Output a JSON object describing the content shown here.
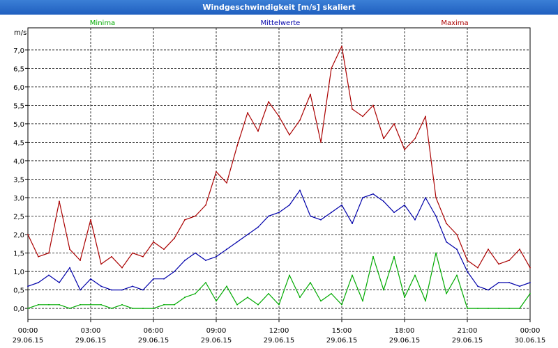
{
  "window": {
    "title": "Windgeschwindigkeit [m/s] skaliert"
  },
  "chart_data": {
    "type": "line",
    "title": "Windgeschwindigkeit [m/s] skaliert",
    "ylabel": "m/s",
    "ylim": [
      -0.3,
      7.6
    ],
    "xlim": [
      0,
      24
    ],
    "grid": true,
    "legend_position": "top",
    "y_ticks": [
      "0,0",
      "0,5",
      "1,0",
      "1,5",
      "2,0",
      "2,5",
      "3,0",
      "3,5",
      "4,0",
      "4,5",
      "5,0",
      "5,5",
      "6,0",
      "6,5",
      "7,0"
    ],
    "y_tick_values": [
      0,
      0.5,
      1,
      1.5,
      2,
      2.5,
      3,
      3.5,
      4,
      4.5,
      5,
      5.5,
      6,
      6.5,
      7
    ],
    "x_ticks": [
      {
        "time": "00:00",
        "date": "29.06.15",
        "hour": 0
      },
      {
        "time": "03:00",
        "date": "29.06.15",
        "hour": 3
      },
      {
        "time": "06:00",
        "date": "29.06.15",
        "hour": 6
      },
      {
        "time": "09:00",
        "date": "29.06.15",
        "hour": 9
      },
      {
        "time": "12:00",
        "date": "29.06.15",
        "hour": 12
      },
      {
        "time": "15:00",
        "date": "29.06.15",
        "hour": 15
      },
      {
        "time": "18:00",
        "date": "29.06.15",
        "hour": 18
      },
      {
        "time": "21:00",
        "date": "29.06.15",
        "hour": 21
      },
      {
        "time": "00:00",
        "date": "30.06.15",
        "hour": 24
      }
    ],
    "series": [
      {
        "name": "Minima",
        "color": "#00aa00",
        "x": [
          0,
          0.5,
          1,
          1.5,
          2,
          2.5,
          3,
          3.5,
          4,
          4.5,
          5,
          5.5,
          6,
          6.5,
          7,
          7.5,
          8,
          8.5,
          9,
          9.5,
          10,
          10.5,
          11,
          11.5,
          12,
          12.5,
          13,
          13.5,
          14,
          14.5,
          15,
          15.5,
          16,
          16.5,
          17,
          17.5,
          18,
          18.5,
          19,
          19.5,
          20,
          20.5,
          21,
          21.5,
          22,
          22.5,
          23,
          23.5,
          24
        ],
        "values": [
          0.0,
          0.1,
          0.1,
          0.1,
          0.0,
          0.1,
          0.1,
          0.1,
          0.0,
          0.1,
          0.0,
          0.0,
          0.0,
          0.1,
          0.1,
          0.3,
          0.4,
          0.7,
          0.2,
          0.6,
          0.1,
          0.3,
          0.1,
          0.4,
          0.1,
          0.9,
          0.3,
          0.7,
          0.2,
          0.4,
          0.1,
          0.9,
          0.2,
          1.4,
          0.5,
          1.4,
          0.3,
          0.9,
          0.2,
          1.5,
          0.4,
          0.9,
          0.0,
          0.0,
          0.0,
          0.0,
          0.0,
          0.0,
          0.4
        ]
      },
      {
        "name": "Mittelwerte",
        "color": "#0000aa",
        "x": [
          0,
          0.5,
          1,
          1.5,
          2,
          2.5,
          3,
          3.5,
          4,
          4.5,
          5,
          5.5,
          6,
          6.5,
          7,
          7.5,
          8,
          8.5,
          9,
          9.5,
          10,
          10.5,
          11,
          11.5,
          12,
          12.5,
          13,
          13.5,
          14,
          14.5,
          15,
          15.5,
          16,
          16.5,
          17,
          17.5,
          18,
          18.5,
          19,
          19.5,
          20,
          20.5,
          21,
          21.5,
          22,
          22.5,
          23,
          23.5,
          24
        ],
        "values": [
          0.6,
          0.7,
          0.9,
          0.7,
          1.1,
          0.5,
          0.8,
          0.6,
          0.5,
          0.5,
          0.6,
          0.5,
          0.8,
          0.8,
          1.0,
          1.3,
          1.5,
          1.3,
          1.4,
          1.6,
          1.8,
          2.0,
          2.2,
          2.5,
          2.6,
          2.8,
          3.2,
          2.5,
          2.4,
          2.6,
          2.8,
          2.3,
          3.0,
          3.1,
          2.9,
          2.6,
          2.8,
          2.4,
          3.0,
          2.5,
          1.8,
          1.6,
          1.0,
          0.6,
          0.5,
          0.7,
          0.7,
          0.6,
          0.7
        ]
      },
      {
        "name": "Maxima",
        "color": "#aa0000",
        "x": [
          0,
          0.5,
          1,
          1.5,
          2,
          2.5,
          3,
          3.5,
          4,
          4.5,
          5,
          5.5,
          6,
          6.5,
          7,
          7.5,
          8,
          8.5,
          9,
          9.5,
          10,
          10.5,
          11,
          11.5,
          12,
          12.5,
          13,
          13.5,
          14,
          14.5,
          15,
          15.5,
          16,
          16.5,
          17,
          17.5,
          18,
          18.5,
          19,
          19.5,
          20,
          20.5,
          21,
          21.5,
          22,
          22.5,
          23,
          23.5,
          24
        ],
        "values": [
          2.0,
          1.4,
          1.5,
          2.9,
          1.6,
          1.3,
          2.4,
          1.2,
          1.4,
          1.1,
          1.5,
          1.4,
          1.8,
          1.6,
          1.9,
          2.4,
          2.5,
          2.8,
          3.7,
          3.4,
          4.4,
          5.3,
          4.8,
          5.6,
          5.2,
          4.7,
          5.1,
          5.8,
          4.5,
          6.5,
          7.1,
          5.4,
          5.2,
          5.5,
          4.6,
          5.0,
          4.3,
          4.6,
          5.2,
          3.0,
          2.3,
          2.0,
          1.3,
          1.1,
          1.6,
          1.2,
          1.3,
          1.6,
          1.1
        ]
      }
    ]
  }
}
